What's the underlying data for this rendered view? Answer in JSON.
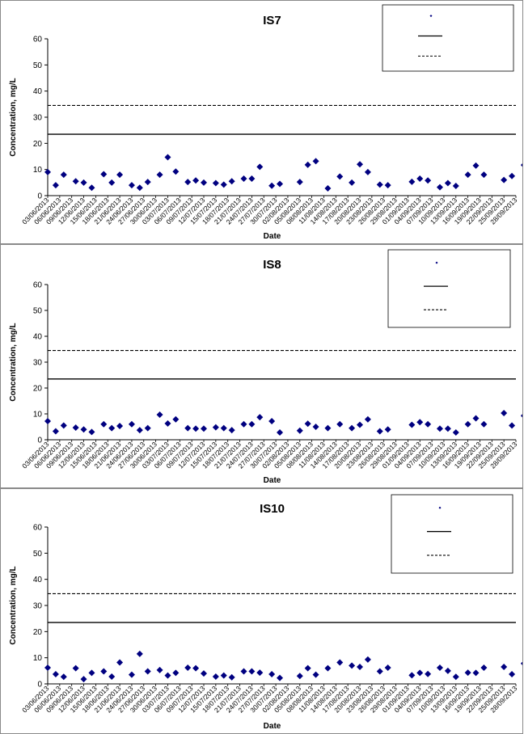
{
  "chart_data": [
    {
      "type": "scatter",
      "title": "IS7",
      "xlabel": "Date",
      "ylabel": "Concentration, mg/L",
      "ylim": [
        0,
        60
      ],
      "yticks": [
        0,
        10,
        20,
        30,
        40,
        50,
        60
      ],
      "grid": false,
      "legend": "top-right",
      "date_ticks": [
        "03/06/2013",
        "06/06/2013",
        "09/06/2013",
        "12/06/2013",
        "15/06/2013",
        "18/06/2013",
        "21/06/2013",
        "24/06/2013",
        "27/06/2013",
        "30/06/2013",
        "03/07/2013",
        "06/07/2013",
        "09/07/2013",
        "12/07/2013",
        "15/07/2013",
        "18/07/2013",
        "21/07/2013",
        "24/07/2013",
        "27/07/2013",
        "30/07/2013",
        "02/08/2013",
        "05/08/2013",
        "08/08/2013",
        "11/08/2013",
        "14/08/2013",
        "17/08/2013",
        "20/08/2013",
        "23/08/2013",
        "26/08/2013",
        "29/08/2013",
        "01/09/2013",
        "04/09/2013",
        "07/09/2013",
        "10/09/2013",
        "13/09/2013",
        "16/09/2013",
        "19/09/2013",
        "22/09/2013",
        "25/09/2013",
        "28/09/2013"
      ],
      "series": [
        {
          "marker": "diamond",
          "color": "#000080",
          "x": [
            "03/06/2013",
            "05/06/2013",
            "07/06/2013",
            "10/06/2013",
            "12/06/2013",
            "14/06/2013",
            "17/06/2013",
            "19/06/2013",
            "21/06/2013",
            "24/06/2013",
            "26/06/2013",
            "28/06/2013",
            "01/07/2013",
            "03/07/2013",
            "05/07/2013",
            "08/07/2013",
            "10/07/2013",
            "12/07/2013",
            "15/07/2013",
            "17/07/2013",
            "19/07/2013",
            "22/07/2013",
            "24/07/2013",
            "26/07/2013",
            "29/07/2013",
            "31/07/2013",
            "05/08/2013",
            "07/08/2013",
            "09/08/2013",
            "12/08/2013",
            "15/08/2013",
            "18/08/2013",
            "20/08/2013",
            "22/08/2013",
            "25/08/2013",
            "27/08/2013",
            "02/09/2013",
            "04/09/2013",
            "06/09/2013",
            "09/09/2013",
            "11/09/2013",
            "13/09/2013",
            "16/09/2013",
            "18/09/2013",
            "20/09/2013",
            "25/09/2013",
            "27/09/2013",
            "30/09/2013"
          ],
          "y": [
            9,
            4,
            8,
            5.5,
            5,
            3,
            8.2,
            5,
            8,
            4,
            3,
            5.2,
            8,
            14.7,
            9.2,
            5.2,
            5.8,
            5,
            4.8,
            4.2,
            5.5,
            6.5,
            6.5,
            11,
            3.8,
            4.5,
            5.2,
            11.8,
            13.2,
            2.8,
            7.3,
            5,
            12,
            9,
            4.2,
            4,
            5.3,
            6.5,
            5.8,
            3.2,
            4.8,
            3.7,
            8,
            11.5,
            8,
            6,
            7.5,
            11.7
          ]
        }
      ],
      "reference_lines": [
        {
          "y": 23.5,
          "style": "solid"
        },
        {
          "y": 34.5,
          "style": "dashed"
        }
      ]
    },
    {
      "type": "scatter",
      "title": "IS8",
      "xlabel": "Date",
      "ylabel": "Concentration, mg/L",
      "ylim": [
        0,
        60
      ],
      "yticks": [
        0,
        10,
        20,
        30,
        40,
        50,
        60
      ],
      "grid": false,
      "legend": "top-right",
      "date_ticks": [
        "03/06/2013",
        "06/06/2013",
        "09/06/2013",
        "12/06/2013",
        "15/06/2013",
        "18/06/2013",
        "21/06/2013",
        "24/06/2013",
        "27/06/2013",
        "30/06/2013",
        "03/07/2013",
        "06/07/2013",
        "09/07/2013",
        "12/07/2013",
        "15/07/2013",
        "18/07/2013",
        "21/07/2013",
        "24/07/2013",
        "27/07/2013",
        "30/07/2013",
        "02/08/2013",
        "05/08/2013",
        "08/08/2013",
        "11/08/2013",
        "14/08/2013",
        "17/08/2013",
        "20/08/2013",
        "23/08/2013",
        "26/08/2013",
        "29/08/2013",
        "01/09/2013",
        "04/09/2013",
        "07/09/2013",
        "10/09/2013",
        "13/09/2013",
        "16/09/2013",
        "19/09/2013",
        "22/09/2013",
        "25/09/2013",
        "28/09/2013"
      ],
      "series": [
        {
          "marker": "diamond",
          "color": "#000080",
          "x": [
            "03/06/2013",
            "05/06/2013",
            "07/06/2013",
            "10/06/2013",
            "12/06/2013",
            "14/06/2013",
            "17/06/2013",
            "19/06/2013",
            "21/06/2013",
            "24/06/2013",
            "26/06/2013",
            "28/06/2013",
            "01/07/2013",
            "03/07/2013",
            "05/07/2013",
            "08/07/2013",
            "10/07/2013",
            "12/07/2013",
            "15/07/2013",
            "17/07/2013",
            "19/07/2013",
            "22/07/2013",
            "24/07/2013",
            "26/07/2013",
            "29/07/2013",
            "31/07/2013",
            "05/08/2013",
            "07/08/2013",
            "09/08/2013",
            "12/08/2013",
            "15/08/2013",
            "18/08/2013",
            "20/08/2013",
            "22/08/2013",
            "25/08/2013",
            "27/08/2013",
            "02/09/2013",
            "04/09/2013",
            "06/09/2013",
            "09/09/2013",
            "11/09/2013",
            "13/09/2013",
            "16/09/2013",
            "18/09/2013",
            "20/09/2013",
            "25/09/2013",
            "27/09/2013",
            "30/09/2013"
          ],
          "y": [
            7.2,
            3.3,
            5.5,
            4.7,
            4,
            3,
            6,
            4.5,
            5.3,
            6,
            3.7,
            4.5,
            9.7,
            6.3,
            7.9,
            4.5,
            4.3,
            4.3,
            4.8,
            4.5,
            3.7,
            6,
            6,
            8.7,
            7.2,
            2.8,
            3.5,
            6.2,
            5,
            4.5,
            6,
            4.5,
            5.8,
            7.9,
            3.3,
            4,
            5.8,
            6.8,
            6,
            4.3,
            4.3,
            2.8,
            6,
            8.3,
            6,
            10.3,
            5.5,
            9.3
          ]
        }
      ],
      "reference_lines": [
        {
          "y": 23.5,
          "style": "solid"
        },
        {
          "y": 34.5,
          "style": "dashed"
        }
      ]
    },
    {
      "type": "scatter",
      "title": "IS10",
      "xlabel": "Date",
      "ylabel": "Concentration, mg/L",
      "ylim": [
        0,
        60
      ],
      "yticks": [
        0,
        10,
        20,
        30,
        40,
        50,
        60
      ],
      "grid": false,
      "legend": "top-right",
      "date_ticks": [
        "03/06/2013",
        "06/06/2013",
        "09/06/2013",
        "12/06/2013",
        "15/06/2013",
        "18/06/2013",
        "21/06/2013",
        "24/06/2013",
        "27/06/2013",
        "30/06/2013",
        "03/07/2013",
        "06/07/2013",
        "09/07/2013",
        "12/07/2013",
        "15/07/2013",
        "18/07/2013",
        "21/07/2013",
        "24/07/2013",
        "27/07/2013",
        "30/07/2013",
        "02/08/2013",
        "05/08/2013",
        "08/08/2013",
        "11/08/2013",
        "14/08/2013",
        "17/08/2013",
        "20/08/2013",
        "23/08/2013",
        "26/08/2013",
        "29/08/2013",
        "01/09/2013",
        "04/09/2013",
        "07/09/2013",
        "10/09/2013",
        "13/09/2013",
        "16/09/2013",
        "19/09/2013",
        "22/09/2013",
        "25/09/2013",
        "28/09/2013"
      ],
      "series": [
        {
          "marker": "diamond",
          "color": "#000080",
          "x": [
            "03/06/2013",
            "05/06/2013",
            "07/06/2013",
            "10/06/2013",
            "12/06/2013",
            "14/06/2013",
            "17/06/2013",
            "19/06/2013",
            "21/06/2013",
            "24/06/2013",
            "26/06/2013",
            "28/06/2013",
            "01/07/2013",
            "03/07/2013",
            "05/07/2013",
            "08/07/2013",
            "10/07/2013",
            "12/07/2013",
            "15/07/2013",
            "17/07/2013",
            "19/07/2013",
            "22/07/2013",
            "24/07/2013",
            "26/07/2013",
            "29/07/2013",
            "31/07/2013",
            "05/08/2013",
            "07/08/2013",
            "09/08/2013",
            "12/08/2013",
            "15/08/2013",
            "18/08/2013",
            "20/08/2013",
            "22/08/2013",
            "25/08/2013",
            "27/08/2013",
            "02/09/2013",
            "04/09/2013",
            "06/09/2013",
            "09/09/2013",
            "11/09/2013",
            "13/09/2013",
            "16/09/2013",
            "18/09/2013",
            "20/09/2013",
            "25/09/2013",
            "27/09/2013",
            "30/09/2013"
          ],
          "y": [
            6.2,
            3.7,
            2.7,
            6,
            1.8,
            4.2,
            4.8,
            2.8,
            8.2,
            3.5,
            11.5,
            4.8,
            5.3,
            3.2,
            4.2,
            6.2,
            6,
            4,
            2.8,
            3.2,
            2.5,
            4.8,
            4.8,
            4.3,
            3.7,
            2.3,
            3,
            6,
            3.5,
            6,
            8.2,
            7,
            6.5,
            9.3,
            4.8,
            6.2,
            3.3,
            4.2,
            3.8,
            6.2,
            5,
            2.7,
            4.3,
            4.2,
            6.2,
            6.5,
            3.7,
            7.8
          ]
        }
      ],
      "reference_lines": [
        {
          "y": 23.5,
          "style": "solid"
        },
        {
          "y": 34.5,
          "style": "dashed"
        }
      ]
    }
  ]
}
